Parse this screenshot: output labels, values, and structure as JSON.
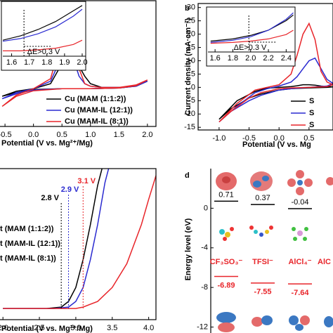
{
  "chart_data": [
    {
      "type": "line",
      "xlabel": "Potential (V vs. Mg²⁺/Mg)",
      "xlim": [
        -0.6,
        2.15
      ],
      "xticks": [
        -0.5,
        {
          "value": 0,
          "label": "0.0"
        },
        0.5,
        {
          "value": 1,
          "label": "1.0"
        },
        1.5,
        {
          "value": 2,
          "label": "2.0"
        }
      ],
      "ylim": [
        -15,
        35
      ],
      "legend": "lower right",
      "series": [
        {
          "name": "Cu (MAM (1:1:2))",
          "color": "#000000",
          "x": [
            -0.55,
            -0.3,
            0,
            0.3,
            0.5,
            0.6,
            0.7,
            0.8,
            0.9,
            1.0,
            1.2,
            1.5,
            1.8,
            2.0,
            1.8,
            1.5,
            1.0,
            0.5,
            0,
            -0.3,
            -0.55
          ],
          "values": [
            -3,
            -1,
            0,
            2,
            10,
            15,
            13,
            9,
            5,
            2,
            0.5,
            0.5,
            1,
            3,
            1,
            0.3,
            0,
            0,
            -0.3,
            -1.5,
            -3
          ]
        },
        {
          "name": "Cu (MAM-IL (12:1))",
          "color": "#2a2ad0",
          "x": [
            -0.55,
            -0.3,
            0,
            0.3,
            0.5,
            0.6,
            0.7,
            0.8,
            0.9,
            1.0,
            1.2,
            1.5,
            1.8,
            2.0,
            1.8,
            1.5,
            1.0,
            0.5,
            0,
            -0.3,
            -0.55
          ],
          "values": [
            -4,
            -1.5,
            0,
            3,
            13,
            18,
            12,
            5,
            2,
            1,
            0.5,
            0.5,
            1,
            3,
            1,
            0.3,
            0,
            0,
            -0.5,
            -2,
            -4
          ]
        },
        {
          "name": "Cu (MAM-IL (8:1))",
          "color": "#e8252a",
          "x": [
            -0.55,
            -0.3,
            0,
            0.3,
            0.5,
            0.6,
            0.7,
            0.8,
            0.9,
            1.0,
            1.2,
            1.5,
            1.8,
            2.0,
            1.8,
            1.5,
            1.0,
            0.5,
            0,
            -0.3,
            -0.55
          ],
          "values": [
            -7,
            -2.5,
            0,
            4,
            20,
            26.7,
            22,
            8,
            2,
            1,
            0.5,
            0.5,
            1.5,
            3.5,
            1.2,
            0.3,
            0,
            0,
            -0.8,
            -3,
            -7
          ]
        }
      ]
    },
    {
      "type": "line",
      "xlim": [
        1.55,
        2.02
      ],
      "xticks": [
        1.6,
        1.7,
        1.8,
        1.9,
        {
          "value": 2,
          "label": "2.0"
        }
      ],
      "ylim": [
        0,
        1
      ],
      "annotations": [
        {
          "text": "ΔE>0.3 V"
        }
      ],
      "series": [
        {
          "color": "#000000",
          "x": [
            1.55,
            1.65,
            1.75,
            1.85,
            1.95,
            2.0
          ],
          "values": [
            0.3,
            0.38,
            0.5,
            0.65,
            0.85,
            0.95
          ]
        },
        {
          "color": "#2a2ad0",
          "x": [
            1.55,
            1.65,
            1.75,
            1.85,
            1.95,
            2.0
          ],
          "values": [
            0.28,
            0.33,
            0.42,
            0.55,
            0.75,
            0.88
          ]
        },
        {
          "color": "#e8252a",
          "x": [
            1.55,
            1.65,
            1.75,
            1.85,
            1.95,
            2.0
          ],
          "values": [
            0.1,
            0.1,
            0.12,
            0.15,
            0.22,
            0.3
          ]
        }
      ]
    },
    {
      "type": "line",
      "label": "b",
      "xlabel": "Potential (V vs. Mg",
      "ylabel": "Current density (mA·cm⁻²)",
      "xlim": [
        -1.35,
        0.9
      ],
      "xticks": [
        {
          "value": -1,
          "label": "-1.0"
        },
        -0.5,
        {
          "value": 0,
          "label": "0.0"
        },
        0.5
      ],
      "ylim": [
        -16,
        31.5
      ],
      "yticks": [
        -15,
        -10,
        -5,
        0,
        5,
        10,
        15,
        20,
        25,
        30
      ],
      "legend": "lower right",
      "series": [
        {
          "name": "S",
          "color": "#000000",
          "x": [
            -1.0,
            -0.7,
            -0.4,
            -0.2,
            0,
            0.2,
            0.3,
            0.4,
            0.5,
            0.6,
            0.7,
            0.8,
            0.9,
            0.8,
            0.5,
            0.2,
            0,
            -0.3,
            -0.5,
            -0.8,
            -1.0
          ],
          "values": [
            -12,
            -5,
            -1.5,
            -0.3,
            0,
            0.3,
            0.6,
            1,
            1,
            0.8,
            0.5,
            0.3,
            0.2,
            0,
            -0.2,
            -0.5,
            -1,
            -2.5,
            -4,
            -8,
            -12
          ]
        },
        {
          "name": "S",
          "color": "#2a2ad0",
          "x": [
            -1.0,
            -0.7,
            -0.4,
            -0.2,
            0,
            0.2,
            0.3,
            0.4,
            0.5,
            0.6,
            0.7,
            0.8,
            0.9,
            0.8,
            0.5,
            0.2,
            0,
            -0.3,
            -0.5,
            -0.8,
            -1.0
          ],
          "values": [
            -13,
            -7,
            -2,
            -0.5,
            0.5,
            2,
            4,
            7,
            10,
            11,
            7,
            3,
            1.5,
            0.5,
            0,
            -0.5,
            -1,
            -3,
            -5,
            -9,
            -13
          ]
        },
        {
          "name": "S",
          "color": "#e8252a",
          "x": [
            -1.0,
            -0.7,
            -0.4,
            -0.2,
            0,
            0.2,
            0.3,
            0.4,
            0.5,
            0.6,
            0.7,
            0.8,
            0.9,
            0.8,
            0.5,
            0.2,
            0,
            -0.3,
            -0.5,
            -0.8,
            -1.0
          ],
          "values": [
            -13,
            -6,
            -1,
            0,
            1,
            5,
            12,
            20,
            24,
            18,
            6,
            2,
            1,
            0.3,
            0,
            -0.2,
            -0.5,
            -2,
            -4,
            -9,
            -13
          ]
        }
      ]
    },
    {
      "type": "line",
      "xlim": [
        1.52,
        2.5
      ],
      "xticks": [
        1.6,
        1.8,
        {
          "value": 2,
          "label": "2.0"
        },
        2.2,
        2.4
      ],
      "ylim": [
        0,
        1
      ],
      "annotations": [
        {
          "text": "ΔE>0.3 V"
        }
      ],
      "series": [
        {
          "color": "#000000",
          "x": [
            1.55,
            1.8,
            2.0,
            2.2,
            2.4,
            2.48
          ],
          "values": [
            0.25,
            0.3,
            0.38,
            0.5,
            0.72,
            0.85
          ]
        },
        {
          "color": "#2a2ad0",
          "x": [
            1.55,
            1.8,
            2.0,
            2.2,
            2.4,
            2.48
          ],
          "values": [
            0.22,
            0.27,
            0.35,
            0.5,
            0.75,
            0.9
          ]
        },
        {
          "color": "#e8252a",
          "x": [
            1.55,
            1.8,
            2.0,
            2.2,
            2.4,
            2.48
          ],
          "values": [
            0.2,
            0.22,
            0.25,
            0.3,
            0.4,
            0.5
          ]
        }
      ]
    },
    {
      "type": "line",
      "xlabel": "Potential (V vs. Mg²⁺/Mg)",
      "xlim": [
        1.95,
        4.1
      ],
      "xticks": [
        {
          "value": 2,
          "label": "2.0"
        },
        2.5,
        {
          "value": 3,
          "label": "3.0"
        },
        3.5,
        {
          "value": 4,
          "label": "4.0"
        }
      ],
      "ylim": [
        -0.08,
        1.0
      ],
      "legend": "left",
      "annotations": [
        {
          "text": "2.8 V",
          "x": 2.8,
          "color": "#000000"
        },
        {
          "text": "2.9 V",
          "x": 2.9,
          "color": "#2a2ad0"
        },
        {
          "text": "3.1 V",
          "x": 3.1,
          "color": "#e8252a"
        }
      ],
      "series": [
        {
          "name": "t (MAM (1:1:2))",
          "color": "#000000",
          "x": [
            2.0,
            2.6,
            2.8,
            2.9,
            3.0,
            3.1,
            3.2,
            3.3,
            3.36
          ],
          "values": [
            0,
            0,
            0.01,
            0.05,
            0.15,
            0.35,
            0.6,
            0.88,
            1.0
          ]
        },
        {
          "name": "t (MAM-IL (12:1))",
          "color": "#2a2ad0",
          "x": [
            2.0,
            2.7,
            2.9,
            3.0,
            3.1,
            3.2,
            3.3,
            3.4,
            3.45
          ],
          "values": [
            0,
            0,
            0.01,
            0.05,
            0.15,
            0.35,
            0.6,
            0.9,
            1.0
          ]
        },
        {
          "name": "t (MAM-IL (8:1))",
          "color": "#e8252a",
          "x": [
            2.0,
            3.0,
            3.1,
            3.3,
            3.5,
            3.7,
            3.9,
            4.0,
            4.1
          ],
          "values": [
            0,
            0,
            0.01,
            0.05,
            0.15,
            0.32,
            0.6,
            0.78,
            0.95
          ]
        }
      ]
    },
    {
      "type": "energy-level",
      "label": "d",
      "ylabel": "Energy level (eV)",
      "ylim": [
        -12.6,
        4.0
      ],
      "yticks": [
        -12,
        -8,
        -4,
        0
      ],
      "categories": [
        "CF₃SO₃⁻",
        "TFSI⁻",
        "AlCl₄⁻",
        "AlC"
      ],
      "series": [
        {
          "color": "#000000",
          "values": [
            0.71,
            0.37,
            -0.04,
            null
          ]
        },
        {
          "color": "#e8252a",
          "values": [
            -6.89,
            -7.55,
            -7.64,
            null
          ]
        }
      ]
    }
  ]
}
